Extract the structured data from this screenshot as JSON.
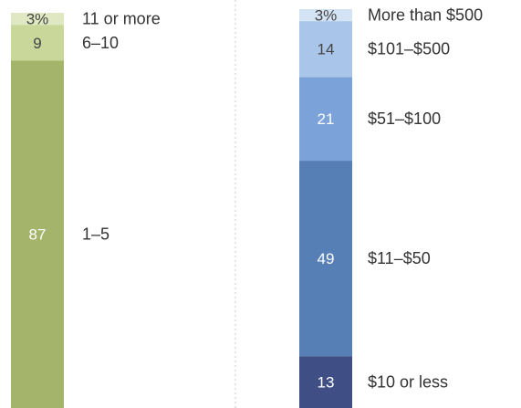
{
  "chart_data": [
    {
      "type": "bar",
      "stacked": true,
      "unit": "%",
      "categories": [
        "1–5",
        "6–10",
        "11 or more"
      ],
      "values": [
        87,
        9,
        3
      ],
      "value_labels": [
        "87",
        "9",
        "3%"
      ],
      "colors": [
        "#a4b46a",
        "#c9d89a",
        "#dfe8c2"
      ],
      "label_colors": [
        "#ffffff",
        "#444444",
        "#444444"
      ]
    },
    {
      "type": "bar",
      "stacked": true,
      "unit": "%",
      "categories": [
        "$10 or less",
        "$11–$50",
        "$51–$100",
        "$101–$500",
        "More than $500"
      ],
      "values": [
        13,
        49,
        21,
        14,
        3
      ],
      "value_labels": [
        "13",
        "49",
        "21",
        "14",
        "3%"
      ],
      "colors": [
        "#3f4f86",
        "#557fb5",
        "#7ba2d9",
        "#a9c6ea",
        "#d5e4f5"
      ],
      "label_colors": [
        "#ffffff",
        "#ffffff",
        "#ffffff",
        "#444444",
        "#444444"
      ]
    }
  ]
}
